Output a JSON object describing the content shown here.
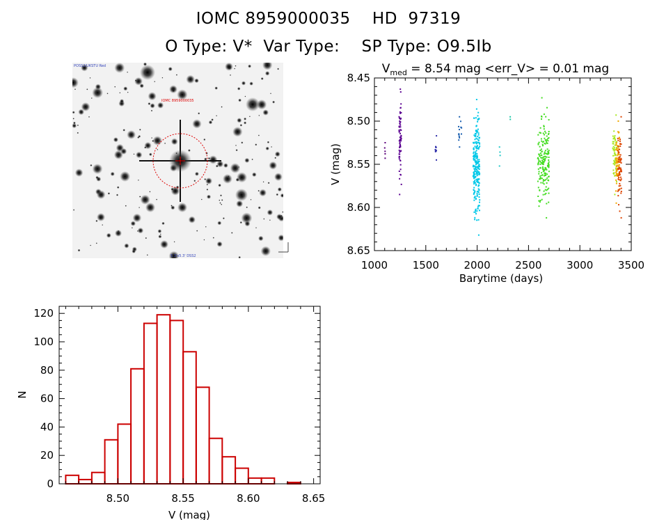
{
  "header": {
    "line1": "IOMC 8959000035    HD  97319",
    "line2": "O Type: V*  Var Type:    SP Type: O9.5Ib"
  },
  "image_labels": {
    "top_left": "POSS2/UKSTU Red",
    "target": "IOMC 8959000035",
    "bottom_center": "5.3'x5.3' DSS2"
  },
  "colors": {
    "axis": "#000000",
    "histogram": "#cc0000",
    "circle": "#dd0000"
  },
  "chart_data": [
    {
      "type": "scatter",
      "title_pre": "V",
      "title_sub": "med",
      "title_post": " = 8.54 mag <err_V> = 0.01 mag",
      "xlabel": "Barytime (days)",
      "ylabel": "V (mag)",
      "xlim": [
        1000,
        3500
      ],
      "ylim": [
        8.65,
        8.45
      ],
      "xticks": [
        1000,
        1500,
        2000,
        2500,
        3000,
        3500
      ],
      "yticks": [
        8.45,
        8.5,
        8.55,
        8.6,
        8.65
      ],
      "ytick_labels": [
        "8.45",
        "8.50",
        "8.55",
        "8.60",
        "8.65"
      ],
      "groups": [
        {
          "x0": 1100,
          "x1": 1105,
          "ymin": 8.525,
          "ymax": 8.543,
          "n": 5,
          "color": "#5a007a"
        },
        {
          "x0": 1240,
          "x1": 1262,
          "ymin": 8.463,
          "ymax": 8.585,
          "n": 70,
          "color": "#5a0090"
        },
        {
          "x0": 1590,
          "x1": 1605,
          "ymin": 8.517,
          "ymax": 8.545,
          "n": 10,
          "color": "#2a2aa8"
        },
        {
          "x0": 1820,
          "x1": 1850,
          "ymin": 8.495,
          "ymax": 8.53,
          "n": 14,
          "color": "#1a5fb0"
        },
        {
          "x0": 1960,
          "x1": 2025,
          "ymin": 8.475,
          "ymax": 8.632,
          "n": 240,
          "color": "#00c8e8"
        },
        {
          "x0": 2215,
          "x1": 2225,
          "ymin": 8.53,
          "ymax": 8.552,
          "n": 4,
          "color": "#20c8c8"
        },
        {
          "x0": 2320,
          "x1": 2325,
          "ymin": 8.495,
          "ymax": 8.498,
          "n": 2,
          "color": "#20c8a8"
        },
        {
          "x0": 2590,
          "x1": 2700,
          "ymin": 8.473,
          "ymax": 8.612,
          "n": 190,
          "color": "#44dd22"
        },
        {
          "x0": 3320,
          "x1": 3360,
          "ymin": 8.493,
          "ymax": 8.585,
          "n": 60,
          "color": "#a8e820"
        },
        {
          "x0": 3350,
          "x1": 3385,
          "ymin": 8.5,
          "ymax": 8.595,
          "n": 70,
          "color": "#f0a800"
        },
        {
          "x0": 3370,
          "x1": 3405,
          "ymin": 8.495,
          "ymax": 8.612,
          "n": 70,
          "color": "#dd4400"
        }
      ]
    },
    {
      "type": "histogram",
      "xlabel": "V (mag)",
      "ylabel": "N",
      "xlim": [
        8.455,
        8.655
      ],
      "ylim": [
        0,
        125
      ],
      "xticks": [
        8.5,
        8.55,
        8.6,
        8.65
      ],
      "xtick_labels": [
        "8.50",
        "8.55",
        "8.60",
        "8.65"
      ],
      "yticks": [
        0,
        20,
        40,
        60,
        80,
        100,
        120
      ],
      "bin_edges": [
        8.46,
        8.47,
        8.48,
        8.49,
        8.5,
        8.51,
        8.52,
        8.53,
        8.54,
        8.55,
        8.56,
        8.57,
        8.58,
        8.59,
        8.6,
        8.61,
        8.62,
        8.63,
        8.64
      ],
      "counts": [
        6,
        3,
        8,
        31,
        42,
        81,
        113,
        119,
        115,
        93,
        68,
        32,
        19,
        11,
        4,
        4,
        0,
        1
      ]
    }
  ]
}
